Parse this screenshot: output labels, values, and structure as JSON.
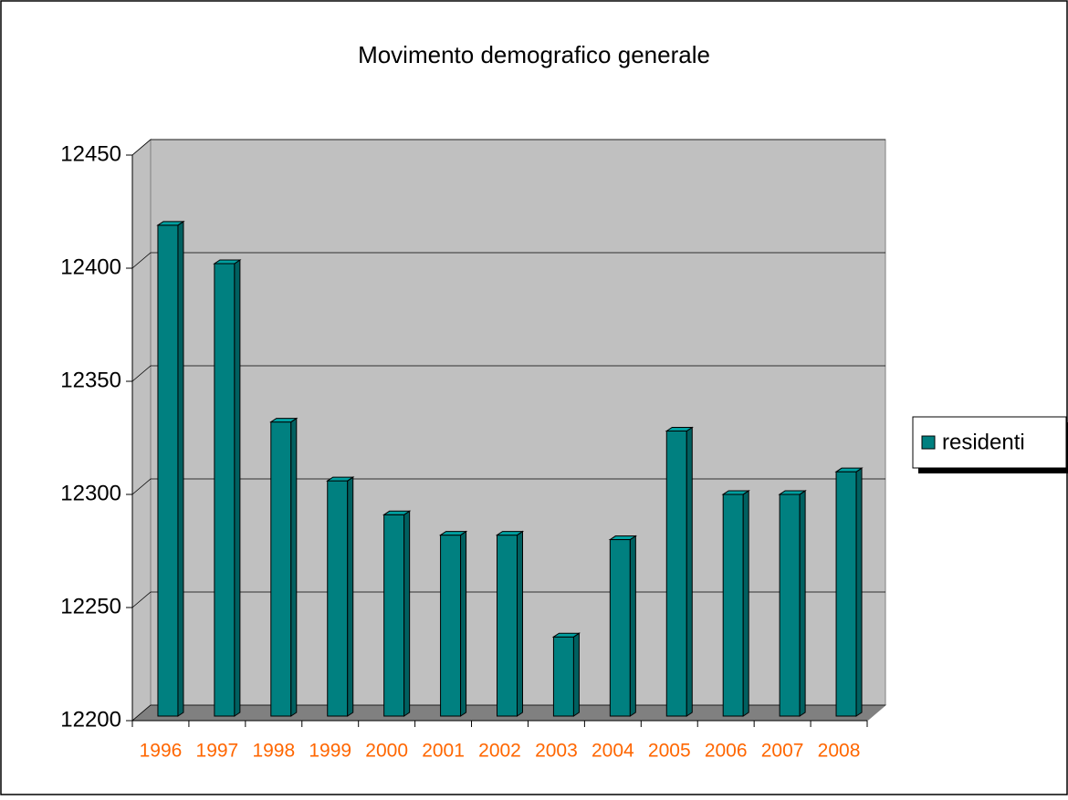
{
  "chart_data": {
    "type": "bar",
    "title": "Movimento demografico generale",
    "categories": [
      "1996",
      "1997",
      "1998",
      "1999",
      "2000",
      "2001",
      "2002",
      "2003",
      "2004",
      "2005",
      "2006",
      "2007",
      "2008"
    ],
    "series": [
      {
        "name": "residenti",
        "color": "#008080",
        "values": [
          12417,
          12400,
          12330,
          12304,
          12289,
          12280,
          12280,
          12235,
          12278,
          12326,
          12298,
          12298,
          12308
        ]
      }
    ],
    "ylim": [
      12200,
      12450
    ],
    "yticks": [
      12200,
      12250,
      12300,
      12350,
      12400,
      12450
    ],
    "grid": true,
    "legend": "right"
  }
}
